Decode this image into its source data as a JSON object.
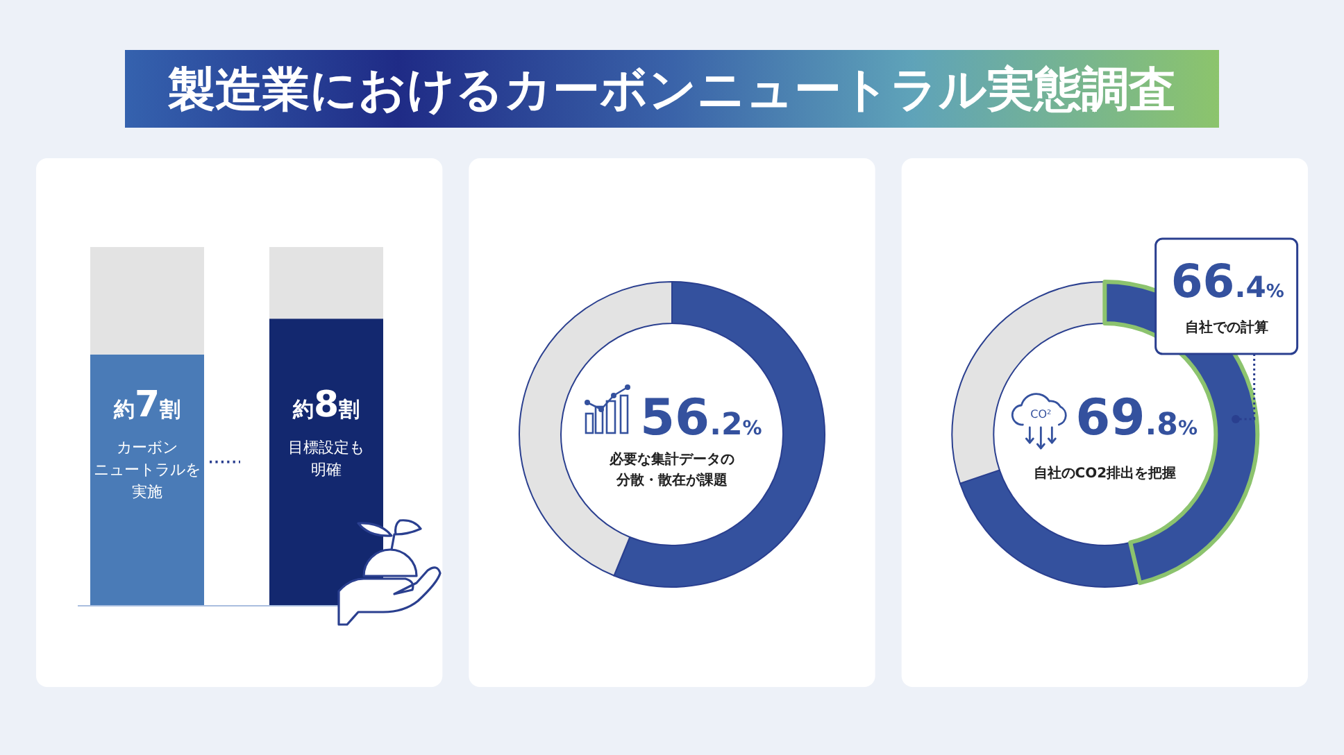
{
  "chart_data": [
    {
      "type": "bar",
      "title": "製造業におけるカーボンニュートラル実態調査",
      "categories": [
        "カーボンニュートラルを実施",
        "目標設定も明確"
      ],
      "stacked": true,
      "ylim": [
        0,
        10
      ],
      "series": [
        {
          "colors": [
            "#4a7bb7",
            "#13286f"
          ],
          "values": [
            7,
            8
          ],
          "value_labels": [
            "約7割",
            "約8割"
          ]
        },
        {
          "color": "#e3e3e3",
          "values": [
            3,
            2
          ]
        }
      ]
    },
    {
      "type": "donut",
      "categories": [
        "必要な集計データの分散・散在が課題",
        null
      ],
      "values": [
        56.2,
        43.8
      ],
      "colors": [
        "#34519e",
        "#e3e3e3"
      ],
      "value_labels": [
        "56.2%",
        null
      ]
    },
    {
      "type": "donut",
      "categories": [
        "自社での計算",
        null,
        null
      ],
      "values": [
        46.3,
        23.5,
        30.2
      ],
      "colors": [
        "#34519e",
        "#34519e",
        "#e3e3e3"
      ],
      "annotations": [
        "69.8%",
        "自社のCO2排出を把握",
        "66.4%",
        "CO²"
      ]
    }
  ]
}
